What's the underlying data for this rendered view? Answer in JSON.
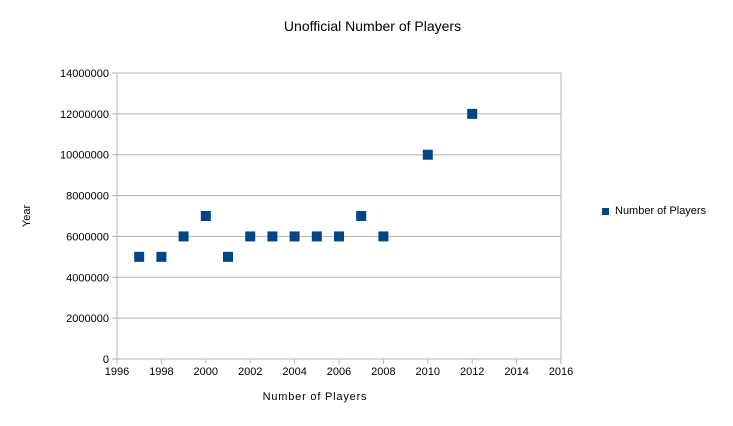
{
  "chart_data": {
    "type": "scatter",
    "title": "Unofficial Number of Players",
    "xlabel": "Number of Players",
    "ylabel": "Year",
    "xlim": [
      1996,
      2016
    ],
    "ylim": [
      0,
      14000000
    ],
    "x_tick_labels": [
      "1996",
      "1998",
      "2000",
      "2002",
      "2004",
      "2006",
      "2008",
      "2010",
      "2012",
      "2014",
      "2016"
    ],
    "y_tick_labels": [
      "0",
      "2000000",
      "4000000",
      "6000000",
      "8000000",
      "10000000",
      "12000000",
      "14000000"
    ],
    "grid": "horizontal",
    "legend_position": "right",
    "series": [
      {
        "name": "Number of Players",
        "marker": "square",
        "color": "#004586",
        "points": [
          [
            1997,
            5000000
          ],
          [
            1998,
            5000000
          ],
          [
            1999,
            6000000
          ],
          [
            2000,
            7000000
          ],
          [
            2001,
            5000000
          ],
          [
            2002,
            6000000
          ],
          [
            2003,
            6000000
          ],
          [
            2004,
            6000000
          ],
          [
            2005,
            6000000
          ],
          [
            2006,
            6000000
          ],
          [
            2007,
            7000000
          ],
          [
            2008,
            6000000
          ],
          [
            2010,
            10000000
          ],
          [
            2012,
            12000000
          ]
        ]
      }
    ],
    "colors": {
      "marker": "#004586",
      "grid": "#b3b3b3",
      "axis": "#b3b3b3",
      "text": "#000000",
      "background": "#ffffff"
    }
  }
}
